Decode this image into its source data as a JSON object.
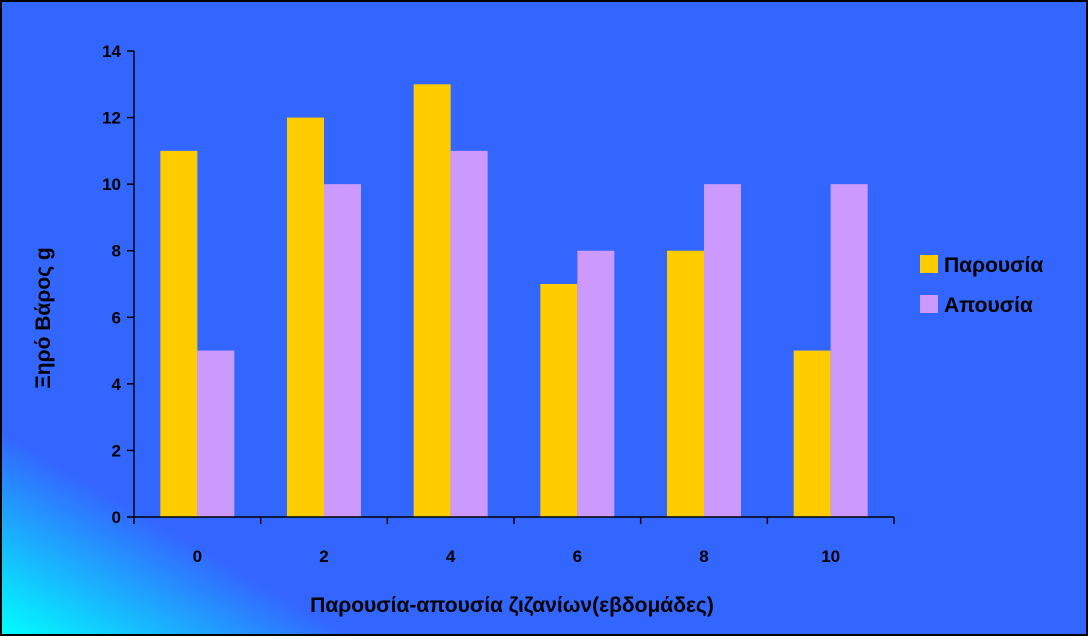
{
  "chart_data": {
    "type": "bar",
    "title": "",
    "xlabel": "Παρουσία-απουσία ζιζανίων(εβδομάδες)",
    "ylabel": "Ξηρό Βάρος g",
    "categories": [
      "0",
      "2",
      "4",
      "6",
      "8",
      "10"
    ],
    "ylim": [
      0,
      14
    ],
    "yticks": [
      "0",
      "2",
      "4",
      "6",
      "8",
      "10",
      "12",
      "14"
    ],
    "grid": false,
    "legend_position": "right",
    "series": [
      {
        "name": "Παρουσία",
        "values": [
          11,
          12,
          13,
          7,
          8,
          5
        ],
        "color": "#FFCC00"
      },
      {
        "name": "Απουσία",
        "values": [
          5,
          10,
          11,
          8,
          10,
          10
        ],
        "color": "#CC99FF"
      }
    ]
  },
  "colors": {
    "background": "#3366FF",
    "corner_gradient": "#00FFFF",
    "axis": "#000000",
    "border": "#000000"
  }
}
